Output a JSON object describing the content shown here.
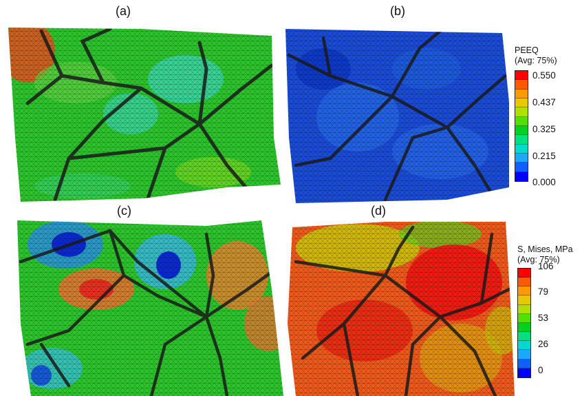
{
  "panels": {
    "a": {
      "label": "(a)"
    },
    "b": {
      "label": "(b)"
    },
    "c": {
      "label": "(c)"
    },
    "d": {
      "label": "(d)"
    }
  },
  "legend_top": {
    "title_line1": "PEEQ",
    "title_line2": "(Avg: 75%)",
    "ticks": [
      "0.550",
      "0.437",
      "0.325",
      "0.215",
      "0.000"
    ]
  },
  "legend_bottom": {
    "title_line1": "S, Mises, MPa",
    "title_line2": "(Avg: 75%)",
    "ticks": [
      "106",
      "79",
      "53",
      "26",
      "0"
    ]
  },
  "colors": {
    "scale": [
      "#ff0000",
      "#ff5a00",
      "#ff9a00",
      "#e8c800",
      "#b0e000",
      "#52e000",
      "#00d020",
      "#00e080",
      "#00d8d0",
      "#1ca8ff",
      "#1060ff",
      "#0000ff"
    ],
    "grain_boundary": "#1a1a1a",
    "mesh": "#000000"
  }
}
